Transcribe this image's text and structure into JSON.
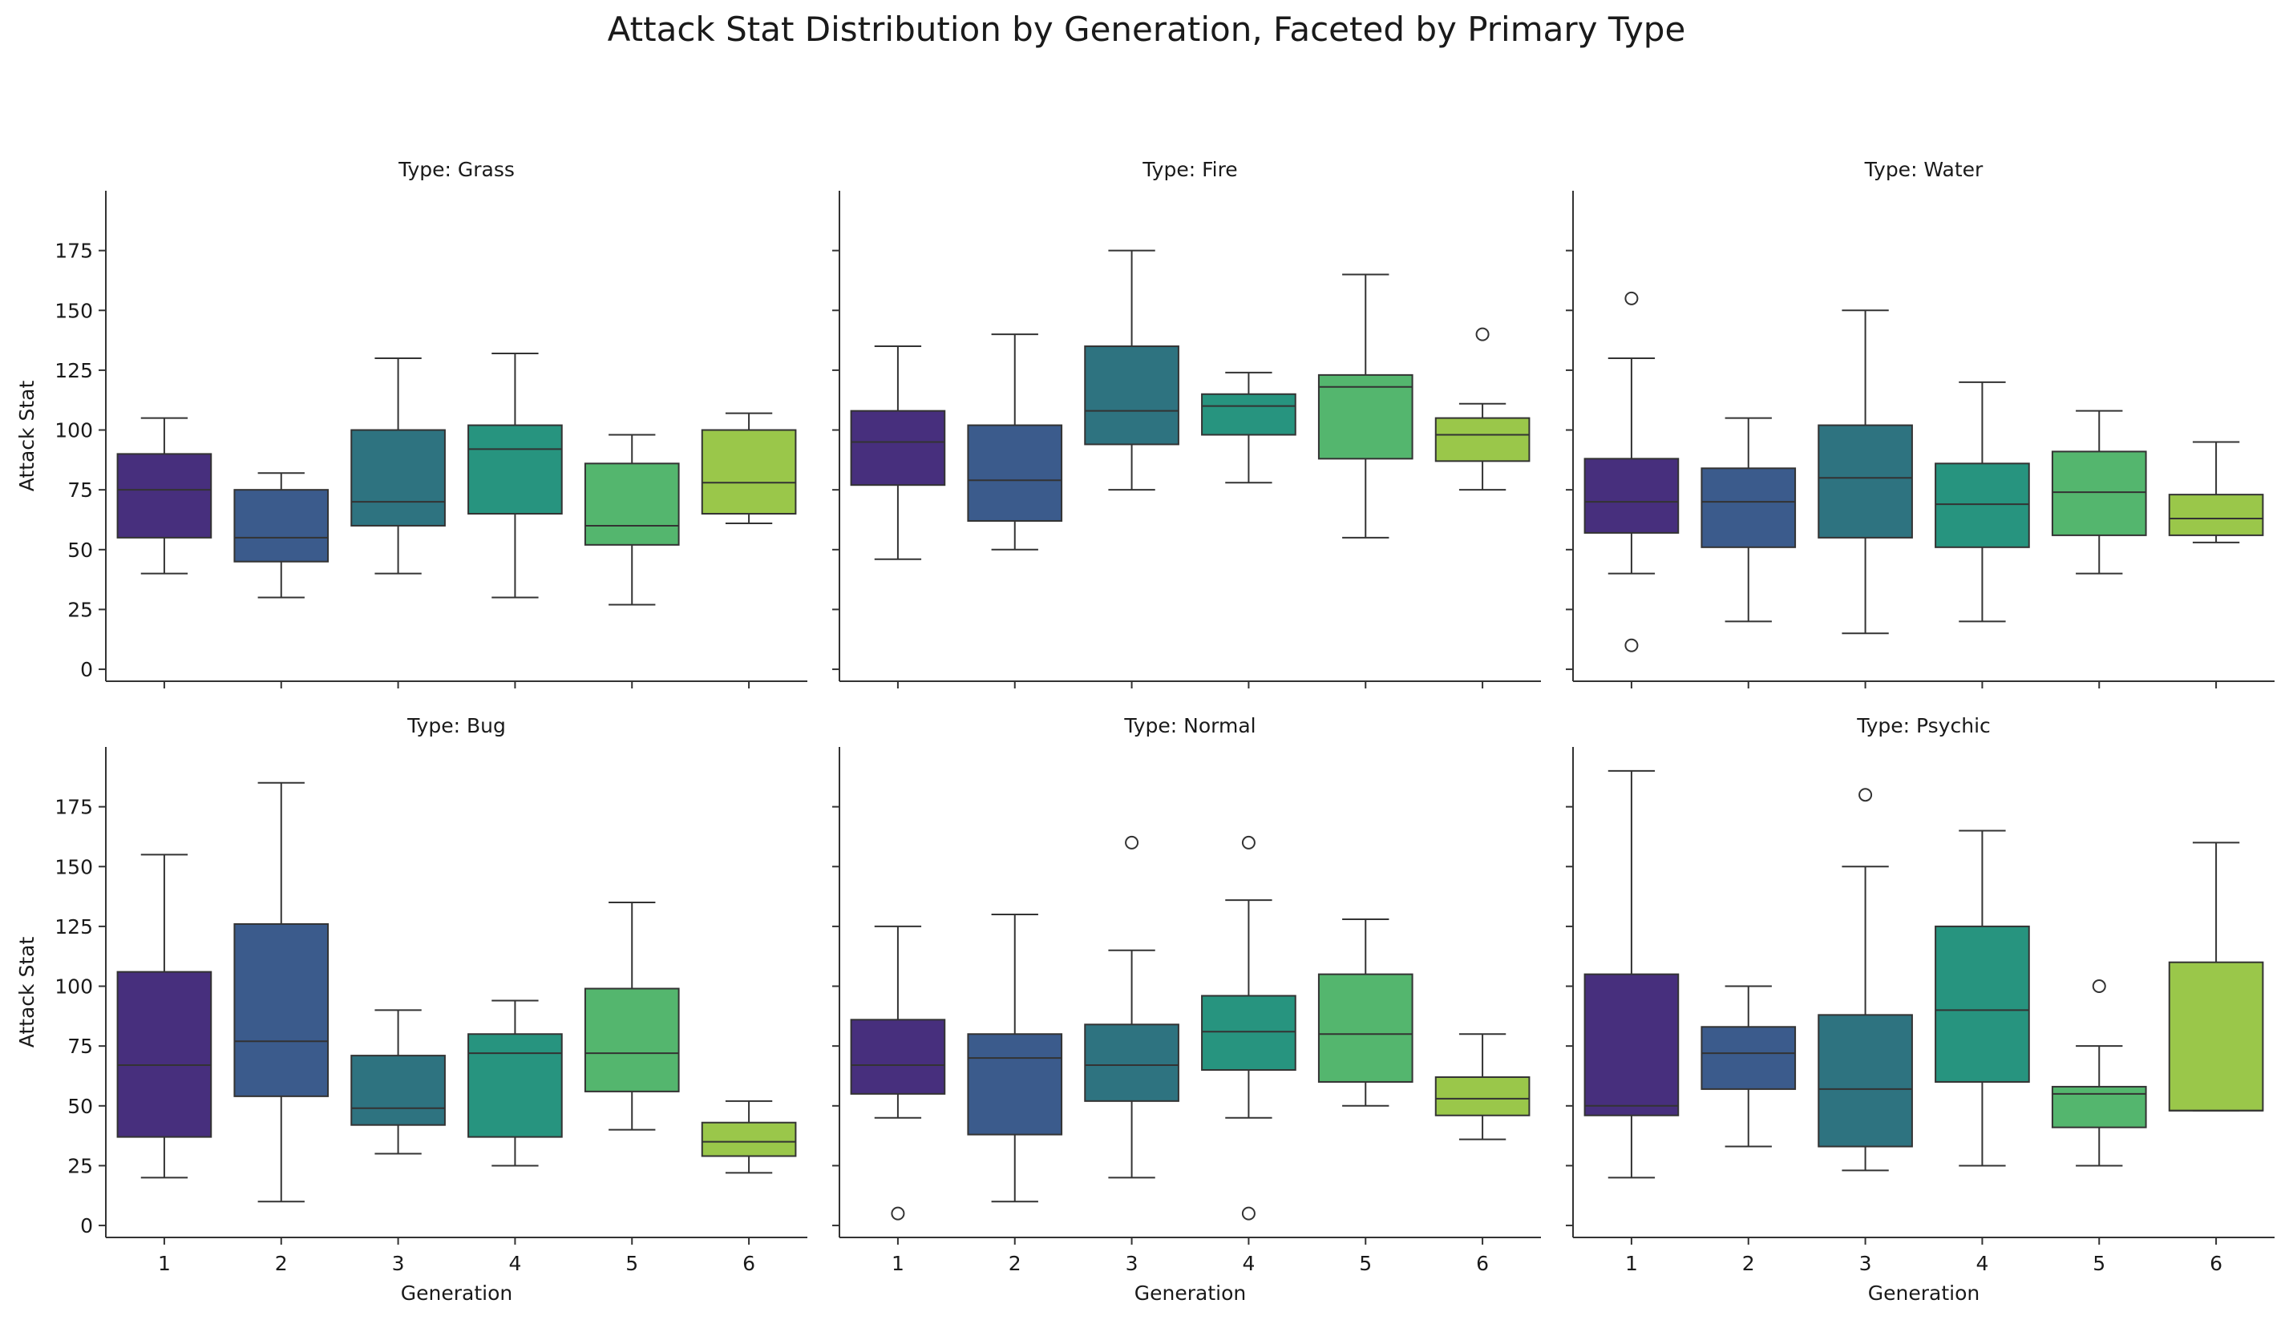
{
  "figure": {
    "title": "Attack Stat Distribution by Generation, Faceted by Primary Type"
  },
  "palette": [
    "#472f7d",
    "#3b5b8c",
    "#2e7380",
    "#27947f",
    "#54b66e",
    "#9ac74a"
  ],
  "chart_data": [
    {
      "type": "box",
      "title": "Type: Grass",
      "xlabel": "",
      "ylabel": "Attack Stat",
      "categories": [
        "1",
        "2",
        "3",
        "4",
        "5",
        "6"
      ],
      "ylim": [
        -5,
        200
      ],
      "yticks": [
        0,
        25,
        50,
        75,
        100,
        125,
        150,
        175
      ],
      "boxes": [
        {
          "whislo": 40,
          "q1": 55,
          "med": 75,
          "q3": 90,
          "whishi": 105,
          "fliers": []
        },
        {
          "whislo": 30,
          "q1": 45,
          "med": 55,
          "q3": 75,
          "whishi": 82,
          "fliers": []
        },
        {
          "whislo": 40,
          "q1": 60,
          "med": 70,
          "q3": 100,
          "whishi": 130,
          "fliers": []
        },
        {
          "whislo": 30,
          "q1": 65,
          "med": 92,
          "q3": 102,
          "whishi": 132,
          "fliers": []
        },
        {
          "whislo": 27,
          "q1": 52,
          "med": 60,
          "q3": 86,
          "whishi": 98,
          "fliers": []
        },
        {
          "whislo": 61,
          "q1": 65,
          "med": 78,
          "q3": 100,
          "whishi": 107,
          "fliers": []
        }
      ]
    },
    {
      "type": "box",
      "title": "Type: Fire",
      "xlabel": "",
      "ylabel": "",
      "categories": [
        "1",
        "2",
        "3",
        "4",
        "5",
        "6"
      ],
      "ylim": [
        -5,
        200
      ],
      "yticks": [
        0,
        25,
        50,
        75,
        100,
        125,
        150,
        175
      ],
      "boxes": [
        {
          "whislo": 46,
          "q1": 77,
          "med": 95,
          "q3": 108,
          "whishi": 135,
          "fliers": []
        },
        {
          "whislo": 50,
          "q1": 62,
          "med": 79,
          "q3": 102,
          "whishi": 140,
          "fliers": []
        },
        {
          "whislo": 75,
          "q1": 94,
          "med": 108,
          "q3": 135,
          "whishi": 175,
          "fliers": []
        },
        {
          "whislo": 78,
          "q1": 98,
          "med": 110,
          "q3": 115,
          "whishi": 124,
          "fliers": []
        },
        {
          "whislo": 55,
          "q1": 88,
          "med": 118,
          "q3": 123,
          "whishi": 165,
          "fliers": []
        },
        {
          "whislo": 75,
          "q1": 87,
          "med": 98,
          "q3": 105,
          "whishi": 111,
          "fliers": [
            140
          ]
        }
      ]
    },
    {
      "type": "box",
      "title": "Type: Water",
      "xlabel": "",
      "ylabel": "",
      "categories": [
        "1",
        "2",
        "3",
        "4",
        "5",
        "6"
      ],
      "ylim": [
        -5,
        200
      ],
      "yticks": [
        0,
        25,
        50,
        75,
        100,
        125,
        150,
        175
      ],
      "boxes": [
        {
          "whislo": 40,
          "q1": 57,
          "med": 70,
          "q3": 88,
          "whishi": 130,
          "fliers": [
            155,
            10
          ]
        },
        {
          "whislo": 20,
          "q1": 51,
          "med": 70,
          "q3": 84,
          "whishi": 105,
          "fliers": []
        },
        {
          "whislo": 15,
          "q1": 55,
          "med": 80,
          "q3": 102,
          "whishi": 150,
          "fliers": []
        },
        {
          "whislo": 20,
          "q1": 51,
          "med": 69,
          "q3": 86,
          "whishi": 120,
          "fliers": []
        },
        {
          "whislo": 40,
          "q1": 56,
          "med": 74,
          "q3": 91,
          "whishi": 108,
          "fliers": []
        },
        {
          "whislo": 53,
          "q1": 56,
          "med": 63,
          "q3": 73,
          "whishi": 95,
          "fliers": []
        }
      ]
    },
    {
      "type": "box",
      "title": "Type: Bug",
      "xlabel": "Generation",
      "ylabel": "Attack Stat",
      "categories": [
        "1",
        "2",
        "3",
        "4",
        "5",
        "6"
      ],
      "ylim": [
        -5,
        200
      ],
      "yticks": [
        0,
        25,
        50,
        75,
        100,
        125,
        150,
        175
      ],
      "boxes": [
        {
          "whislo": 20,
          "q1": 37,
          "med": 67,
          "q3": 106,
          "whishi": 155,
          "fliers": []
        },
        {
          "whislo": 10,
          "q1": 54,
          "med": 77,
          "q3": 126,
          "whishi": 185,
          "fliers": []
        },
        {
          "whislo": 30,
          "q1": 42,
          "med": 49,
          "q3": 71,
          "whishi": 90,
          "fliers": []
        },
        {
          "whislo": 25,
          "q1": 37,
          "med": 72,
          "q3": 80,
          "whishi": 94,
          "fliers": []
        },
        {
          "whislo": 40,
          "q1": 56,
          "med": 72,
          "q3": 99,
          "whishi": 135,
          "fliers": []
        },
        {
          "whislo": 22,
          "q1": 29,
          "med": 35,
          "q3": 43,
          "whishi": 52,
          "fliers": []
        }
      ]
    },
    {
      "type": "box",
      "title": "Type: Normal",
      "xlabel": "Generation",
      "ylabel": "",
      "categories": [
        "1",
        "2",
        "3",
        "4",
        "5",
        "6"
      ],
      "ylim": [
        -5,
        200
      ],
      "yticks": [
        0,
        25,
        50,
        75,
        100,
        125,
        150,
        175
      ],
      "boxes": [
        {
          "whislo": 45,
          "q1": 55,
          "med": 67,
          "q3": 86,
          "whishi": 125,
          "fliers": [
            5
          ]
        },
        {
          "whislo": 10,
          "q1": 38,
          "med": 70,
          "q3": 80,
          "whishi": 130,
          "fliers": []
        },
        {
          "whislo": 20,
          "q1": 52,
          "med": 67,
          "q3": 84,
          "whishi": 115,
          "fliers": [
            160
          ]
        },
        {
          "whislo": 45,
          "q1": 65,
          "med": 81,
          "q3": 96,
          "whishi": 136,
          "fliers": [
            160,
            5
          ]
        },
        {
          "whislo": 50,
          "q1": 60,
          "med": 80,
          "q3": 105,
          "whishi": 128,
          "fliers": []
        },
        {
          "whislo": 36,
          "q1": 46,
          "med": 53,
          "q3": 62,
          "whishi": 80,
          "fliers": []
        }
      ]
    },
    {
      "type": "box",
      "title": "Type: Psychic",
      "xlabel": "Generation",
      "ylabel": "",
      "categories": [
        "1",
        "2",
        "3",
        "4",
        "5",
        "6"
      ],
      "ylim": [
        -5,
        200
      ],
      "yticks": [
        0,
        25,
        50,
        75,
        100,
        125,
        150,
        175
      ],
      "boxes": [
        {
          "whislo": 20,
          "q1": 46,
          "med": 50,
          "q3": 105,
          "whishi": 190,
          "fliers": []
        },
        {
          "whislo": 33,
          "q1": 57,
          "med": 72,
          "q3": 83,
          "whishi": 100,
          "fliers": []
        },
        {
          "whislo": 23,
          "q1": 33,
          "med": 57,
          "q3": 88,
          "whishi": 150,
          "fliers": [
            180
          ]
        },
        {
          "whislo": 25,
          "q1": 60,
          "med": 90,
          "q3": 125,
          "whishi": 165,
          "fliers": []
        },
        {
          "whislo": 25,
          "q1": 41,
          "med": 55,
          "q3": 58,
          "whishi": 75,
          "fliers": [
            100
          ]
        },
        {
          "whislo": 48,
          "q1": 48,
          "med": 48,
          "q3": 110,
          "whishi": 160,
          "fliers": []
        }
      ]
    }
  ]
}
